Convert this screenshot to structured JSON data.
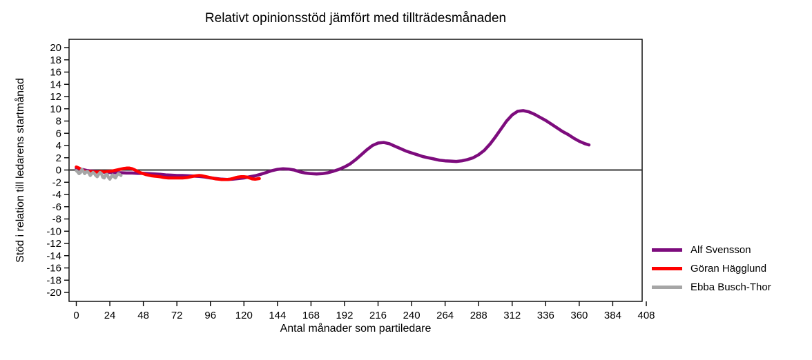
{
  "chart_data": {
    "type": "line",
    "title": "Relativt opinionsstöd jämfört med tillträdesmånaden",
    "xlabel": "Antal månader som partiledare",
    "ylabel": "Stöd i relation till ledarens startmånad",
    "xlim": [
      0,
      408
    ],
    "ylim": [
      -20,
      20
    ],
    "x_ticks": [
      0,
      24,
      48,
      72,
      96,
      120,
      144,
      168,
      192,
      216,
      240,
      264,
      288,
      312,
      336,
      360,
      384,
      408
    ],
    "y_ticks": [
      20,
      18,
      16,
      14,
      12,
      10,
      8,
      6,
      4,
      2,
      0,
      -2,
      -4,
      -6,
      -8,
      -10,
      -12,
      -14,
      -16,
      -18,
      -20
    ],
    "grid": false,
    "zero_line": true,
    "legend_position": "right-outside",
    "series": [
      {
        "name": "Alf Svensson",
        "color": "#7D0C7D",
        "points": [
          [
            0,
            0.3
          ],
          [
            4,
            0.1
          ],
          [
            8,
            -0.1
          ],
          [
            12,
            -0.2
          ],
          [
            16,
            -0.3
          ],
          [
            20,
            -0.35
          ],
          [
            24,
            -0.4
          ],
          [
            28,
            -0.45
          ],
          [
            32,
            -0.45
          ],
          [
            36,
            -0.5
          ],
          [
            40,
            -0.5
          ],
          [
            44,
            -0.55
          ],
          [
            48,
            -0.55
          ],
          [
            52,
            -0.6
          ],
          [
            56,
            -0.65
          ],
          [
            60,
            -0.7
          ],
          [
            64,
            -0.8
          ],
          [
            68,
            -0.85
          ],
          [
            72,
            -0.9
          ],
          [
            76,
            -0.9
          ],
          [
            80,
            -0.95
          ],
          [
            84,
            -1.0
          ],
          [
            88,
            -1.05
          ],
          [
            92,
            -1.15
          ],
          [
            96,
            -1.3
          ],
          [
            100,
            -1.4
          ],
          [
            104,
            -1.5
          ],
          [
            108,
            -1.55
          ],
          [
            112,
            -1.5
          ],
          [
            116,
            -1.4
          ],
          [
            120,
            -1.3
          ],
          [
            124,
            -1.1
          ],
          [
            128,
            -0.95
          ],
          [
            132,
            -0.7
          ],
          [
            136,
            -0.4
          ],
          [
            140,
            -0.1
          ],
          [
            144,
            0.1
          ],
          [
            148,
            0.2
          ],
          [
            152,
            0.15
          ],
          [
            156,
            0.0
          ],
          [
            160,
            -0.3
          ],
          [
            164,
            -0.5
          ],
          [
            168,
            -0.6
          ],
          [
            172,
            -0.65
          ],
          [
            176,
            -0.6
          ],
          [
            180,
            -0.45
          ],
          [
            184,
            -0.2
          ],
          [
            188,
            0.1
          ],
          [
            192,
            0.5
          ],
          [
            196,
            1.0
          ],
          [
            200,
            1.7
          ],
          [
            204,
            2.5
          ],
          [
            208,
            3.3
          ],
          [
            212,
            4.0
          ],
          [
            216,
            4.4
          ],
          [
            220,
            4.5
          ],
          [
            224,
            4.3
          ],
          [
            228,
            3.9
          ],
          [
            232,
            3.5
          ],
          [
            236,
            3.1
          ],
          [
            240,
            2.8
          ],
          [
            244,
            2.5
          ],
          [
            248,
            2.2
          ],
          [
            252,
            2.0
          ],
          [
            256,
            1.8
          ],
          [
            260,
            1.6
          ],
          [
            264,
            1.5
          ],
          [
            268,
            1.45
          ],
          [
            272,
            1.4
          ],
          [
            276,
            1.5
          ],
          [
            280,
            1.7
          ],
          [
            284,
            2.0
          ],
          [
            288,
            2.5
          ],
          [
            292,
            3.2
          ],
          [
            296,
            4.2
          ],
          [
            300,
            5.4
          ],
          [
            304,
            6.7
          ],
          [
            308,
            8.0
          ],
          [
            312,
            9.0
          ],
          [
            316,
            9.6
          ],
          [
            320,
            9.7
          ],
          [
            324,
            9.5
          ],
          [
            328,
            9.1
          ],
          [
            332,
            8.6
          ],
          [
            336,
            8.1
          ],
          [
            340,
            7.5
          ],
          [
            344,
            6.9
          ],
          [
            348,
            6.3
          ],
          [
            352,
            5.8
          ],
          [
            356,
            5.2
          ],
          [
            360,
            4.7
          ],
          [
            364,
            4.3
          ],
          [
            367,
            4.1
          ]
        ]
      },
      {
        "name": "Göran Hägglund",
        "color": "#FF0000",
        "points": [
          [
            0,
            0.5
          ],
          [
            2,
            0.3
          ],
          [
            4,
            0.0
          ],
          [
            6,
            -0.2
          ],
          [
            8,
            -0.3
          ],
          [
            10,
            -0.25
          ],
          [
            12,
            -0.3
          ],
          [
            14,
            -0.35
          ],
          [
            16,
            -0.3
          ],
          [
            18,
            -0.25
          ],
          [
            20,
            -0.3
          ],
          [
            22,
            -0.25
          ],
          [
            24,
            -0.2
          ],
          [
            26,
            -0.15
          ],
          [
            28,
            -0.05
          ],
          [
            30,
            0.05
          ],
          [
            32,
            0.15
          ],
          [
            34,
            0.25
          ],
          [
            36,
            0.3
          ],
          [
            38,
            0.3
          ],
          [
            40,
            0.2
          ],
          [
            42,
            0.0
          ],
          [
            44,
            -0.25
          ],
          [
            46,
            -0.45
          ],
          [
            48,
            -0.6
          ],
          [
            50,
            -0.75
          ],
          [
            52,
            -0.85
          ],
          [
            54,
            -0.95
          ],
          [
            56,
            -1.0
          ],
          [
            58,
            -1.05
          ],
          [
            60,
            -1.1
          ],
          [
            62,
            -1.2
          ],
          [
            64,
            -1.25
          ],
          [
            66,
            -1.3
          ],
          [
            68,
            -1.3
          ],
          [
            70,
            -1.3
          ],
          [
            72,
            -1.3
          ],
          [
            74,
            -1.3
          ],
          [
            76,
            -1.3
          ],
          [
            78,
            -1.25
          ],
          [
            80,
            -1.2
          ],
          [
            82,
            -1.1
          ],
          [
            84,
            -1.0
          ],
          [
            86,
            -0.95
          ],
          [
            88,
            -0.9
          ],
          [
            90,
            -0.95
          ],
          [
            92,
            -1.05
          ],
          [
            94,
            -1.15
          ],
          [
            96,
            -1.25
          ],
          [
            98,
            -1.35
          ],
          [
            100,
            -1.45
          ],
          [
            102,
            -1.5
          ],
          [
            104,
            -1.55
          ],
          [
            106,
            -1.55
          ],
          [
            108,
            -1.55
          ],
          [
            110,
            -1.5
          ],
          [
            112,
            -1.4
          ],
          [
            114,
            -1.25
          ],
          [
            116,
            -1.15
          ],
          [
            118,
            -1.1
          ],
          [
            120,
            -1.1
          ],
          [
            122,
            -1.15
          ],
          [
            124,
            -1.3
          ],
          [
            126,
            -1.45
          ],
          [
            128,
            -1.5
          ],
          [
            131,
            -1.4
          ]
        ]
      },
      {
        "name": "Ebba Busch-Thor",
        "color": "#A6A6A6",
        "points": [
          [
            0,
            -0.1
          ],
          [
            1,
            -0.3
          ],
          [
            2,
            -0.6
          ],
          [
            3,
            -0.4
          ],
          [
            4,
            0.1
          ],
          [
            5,
            -0.2
          ],
          [
            6,
            -0.6
          ],
          [
            7,
            -0.3
          ],
          [
            8,
            -0.25
          ],
          [
            9,
            -0.5
          ],
          [
            10,
            -0.9
          ],
          [
            11,
            -0.6
          ],
          [
            12,
            -0.4
          ],
          [
            13,
            -0.6
          ],
          [
            14,
            -0.9
          ],
          [
            15,
            -1.1
          ],
          [
            16,
            -0.7
          ],
          [
            17,
            -0.4
          ],
          [
            18,
            -0.6
          ],
          [
            19,
            -1.2
          ],
          [
            20,
            -1.3
          ],
          [
            21,
            -0.8
          ],
          [
            22,
            -0.7
          ],
          [
            23,
            -1.2
          ],
          [
            24,
            -1.5
          ],
          [
            25,
            -1.1
          ],
          [
            26,
            -0.8
          ],
          [
            27,
            -1.1
          ],
          [
            28,
            -1.3
          ],
          [
            29,
            -0.9
          ],
          [
            30,
            -0.6
          ],
          [
            31,
            -0.7
          ],
          [
            32,
            -0.9
          ]
        ]
      }
    ]
  }
}
